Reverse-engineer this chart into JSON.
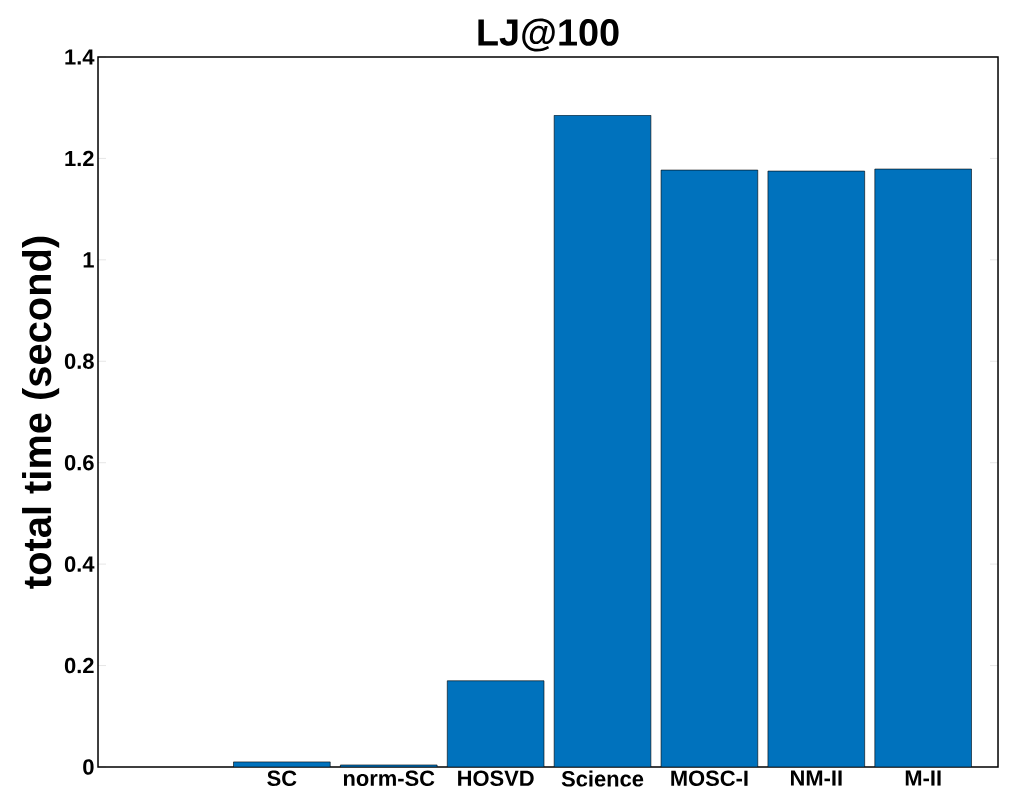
{
  "chart_data": {
    "type": "bar",
    "title": "LJ@100",
    "ylabel": "total time (second)",
    "categories": [
      null,
      "SC",
      "norm-SC",
      "HOSVD",
      "Science",
      "MOSC-I",
      "NM-II",
      "M-II"
    ],
    "values": [
      null,
      0.01,
      0.004,
      0.17,
      1.285,
      1.177,
      1.175,
      1.179
    ],
    "color": "#0072bd",
    "ylim": [
      0,
      1.4
    ],
    "yticks": [
      0,
      0.2,
      0.4,
      0.6,
      0.8,
      1,
      1.2,
      1.4
    ]
  }
}
